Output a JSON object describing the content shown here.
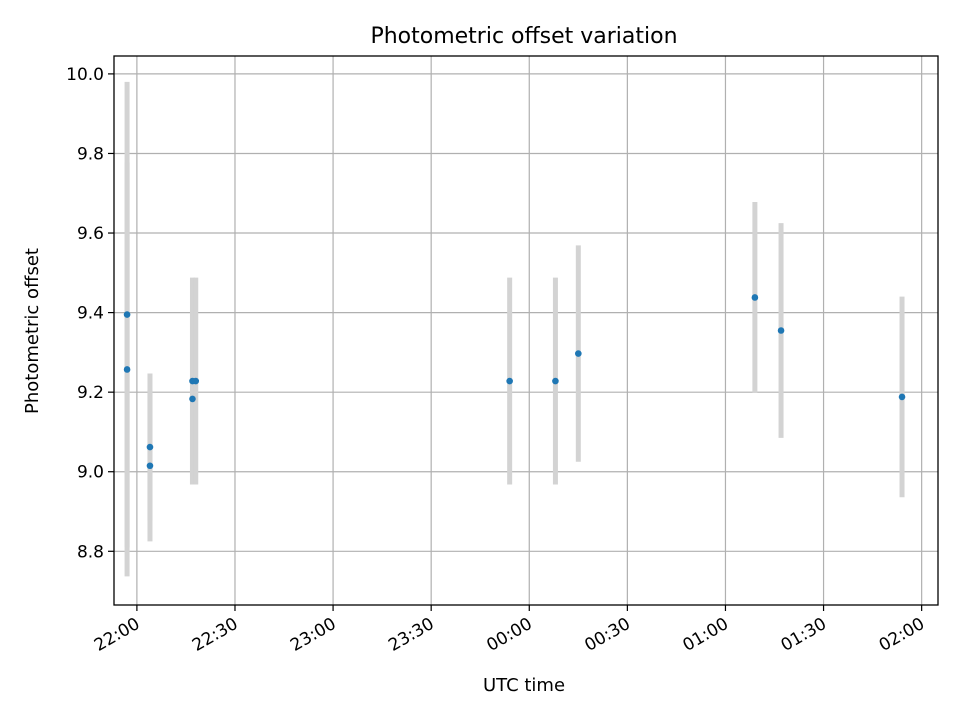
{
  "chart_data": {
    "type": "scatter",
    "title": "Photometric offset variation",
    "xlabel": "UTC time",
    "ylabel": "Photometric offset",
    "x_ticks": [
      "22:00",
      "22:30",
      "23:00",
      "23:30",
      "00:00",
      "00:30",
      "01:00",
      "01:30",
      "02:00"
    ],
    "y_ticks": [
      "8.8",
      "9.0",
      "9.2",
      "9.4",
      "9.6",
      "9.8",
      "10.0"
    ],
    "xlim": [
      "21:53",
      "02:05"
    ],
    "ylim": [
      8.665,
      10.045
    ],
    "grid": true,
    "marker_color": "#1f77b4",
    "errorbar_color": "#d3d3d3",
    "points": [
      {
        "x": "21:57",
        "y": 9.395,
        "y_err": 0.585
      },
      {
        "x": "21:57",
        "y": 9.257,
        "y_err": 0.52
      },
      {
        "x": "22:04",
        "y": 9.015,
        "y_err": 0.19
      },
      {
        "x": "22:04",
        "y": 9.062,
        "y_err": 0.185
      },
      {
        "x": "22:17",
        "y": 9.183,
        "y_err": 0.215
      },
      {
        "x": "22:17",
        "y": 9.228,
        "y_err": 0.26
      },
      {
        "x": "22:18",
        "y": 9.228,
        "y_err": 0.26
      },
      {
        "x": "23:54",
        "y": 9.228,
        "y_err": 0.26
      },
      {
        "x": "00:08",
        "y": 9.228,
        "y_err": 0.26
      },
      {
        "x": "00:15",
        "y": 9.297,
        "y_err": 0.272
      },
      {
        "x": "01:09",
        "y": 9.438,
        "y_err": 0.24
      },
      {
        "x": "01:17",
        "y": 9.355,
        "y_err": 0.27
      },
      {
        "x": "01:54",
        "y": 9.188,
        "y_err": 0.252
      }
    ]
  }
}
